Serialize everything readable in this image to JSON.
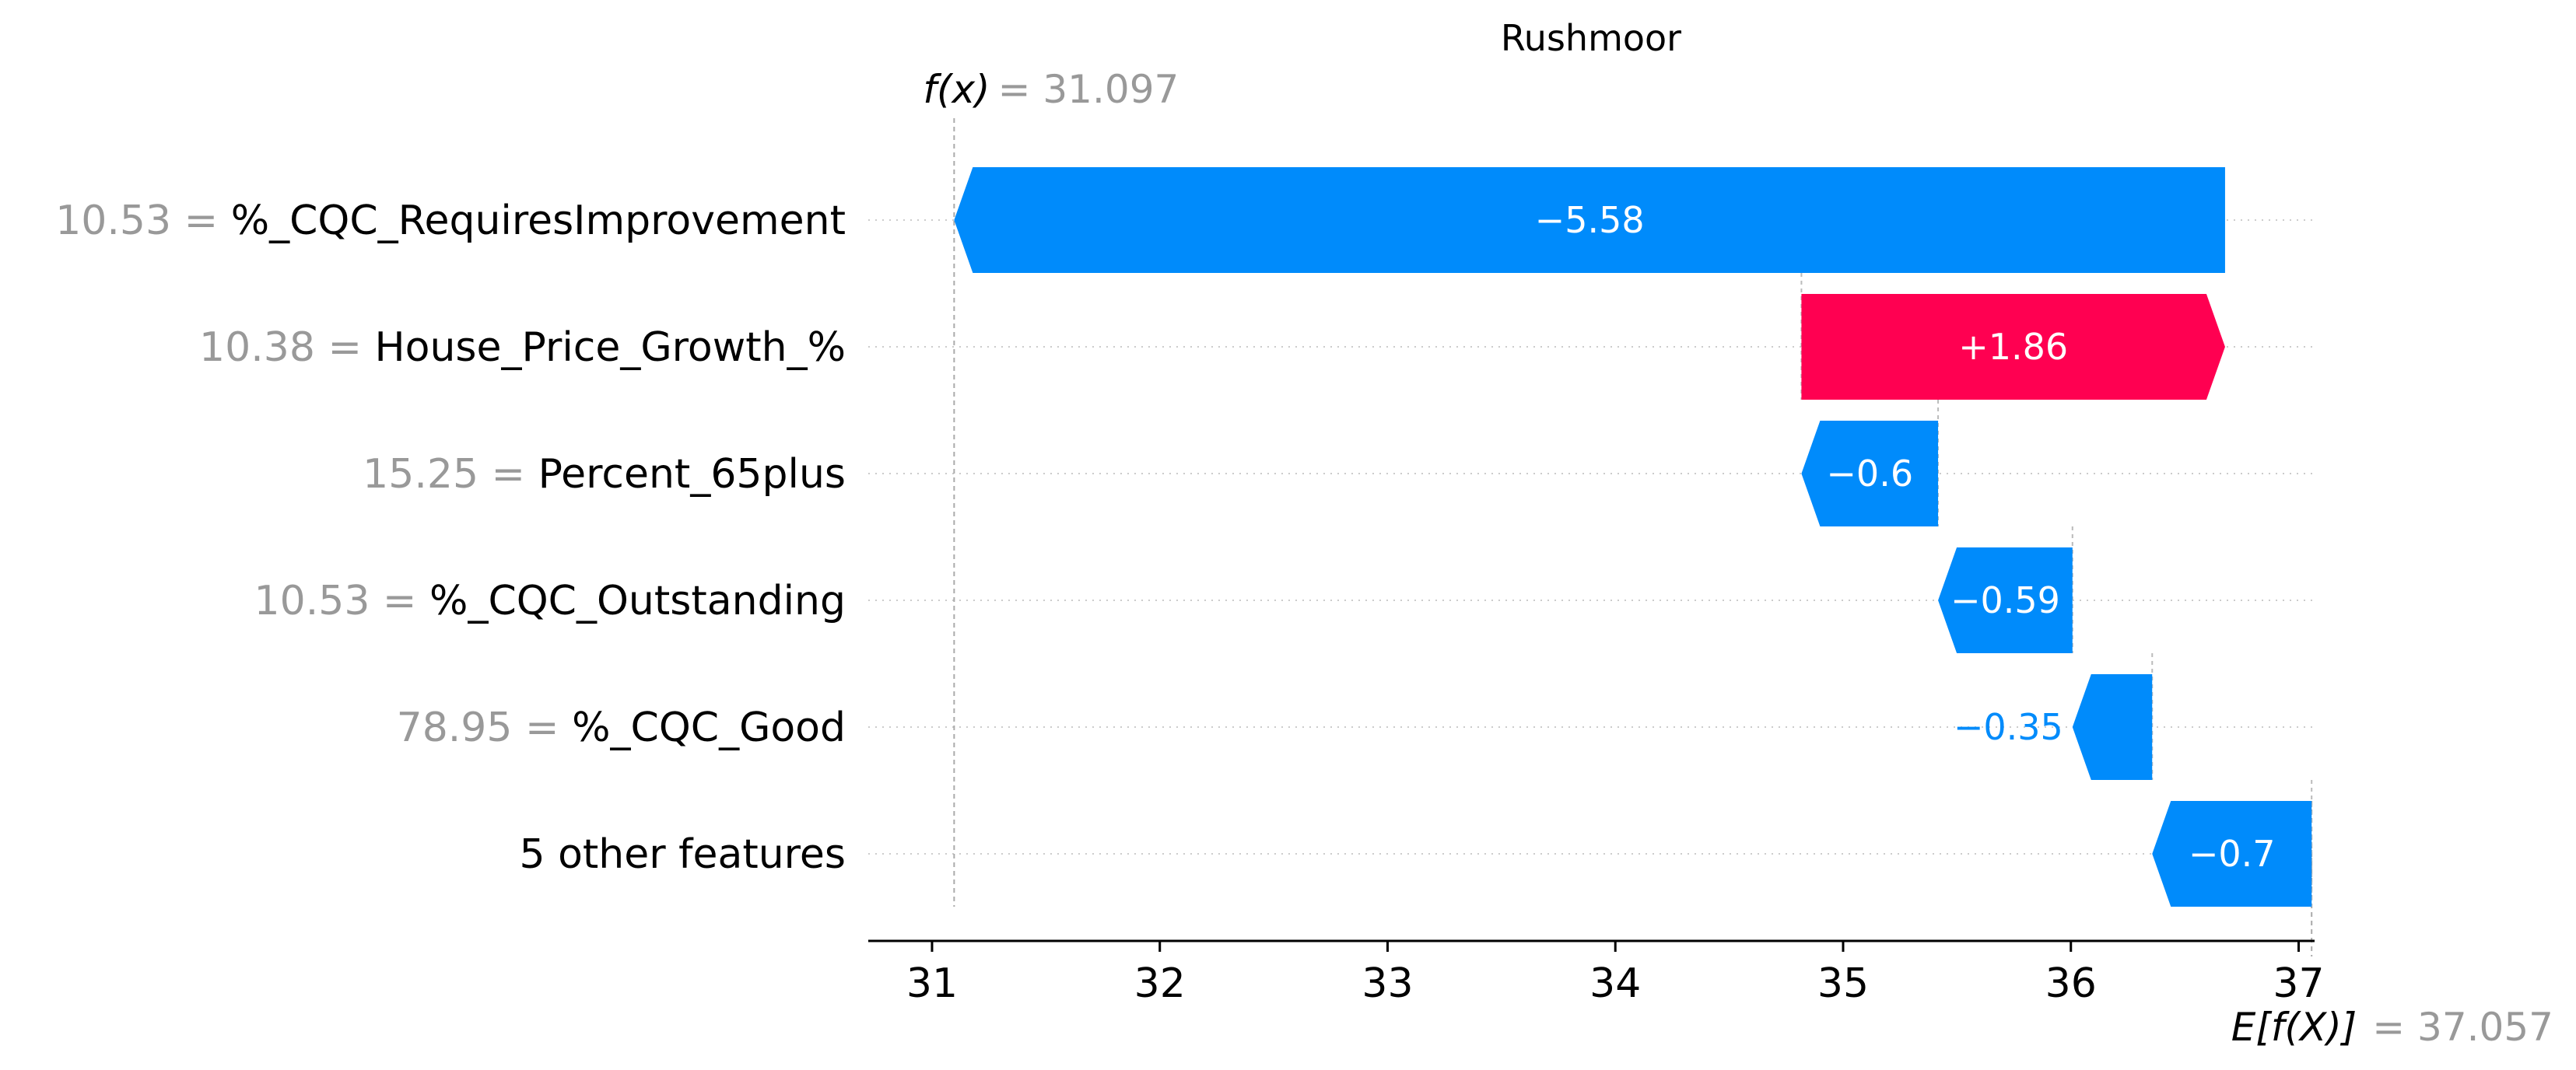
{
  "chart_data": {
    "type": "waterfall",
    "title": "Rushmoor",
    "fx": {
      "label": "f(x)",
      "value": "31.097",
      "numeric": 31.097
    },
    "efx": {
      "label": "E[f(X)]",
      "value": "37.057",
      "numeric": 37.057
    },
    "xlim": [
      30.72,
      37.07
    ],
    "xticks": [
      "31",
      "32",
      "33",
      "34",
      "35",
      "36",
      "37"
    ],
    "features": [
      {
        "name": "%_CQC_RequiresImprovement",
        "value": "10.53",
        "contribution": -5.58,
        "label": "−5.58",
        "start": 36.677,
        "end": 31.097
      },
      {
        "name": "House_Price_Growth_%",
        "value": "10.38",
        "contribution": 1.86,
        "label": "+1.86",
        "start": 34.817,
        "end": 36.677
      },
      {
        "name": "Percent_65plus",
        "value": "15.25",
        "contribution": -0.6,
        "label": "−0.6",
        "start": 35.417,
        "end": 34.817
      },
      {
        "name": "%_CQC_Outstanding",
        "value": "10.53",
        "contribution": -0.59,
        "label": "−0.59",
        "start": 36.007,
        "end": 35.417
      },
      {
        "name": "%_CQC_Good",
        "value": "78.95",
        "contribution": -0.35,
        "label": "−0.35",
        "start": 36.357,
        "end": 36.007
      },
      {
        "name": "5 other features",
        "value": "",
        "contribution": -0.7,
        "label": "−0.7",
        "start": 37.057,
        "end": 36.357
      }
    ],
    "colors": {
      "positive": "#ff0051",
      "negative": "#008bfb",
      "muted": "#999999",
      "grid": "#cccccc"
    }
  }
}
